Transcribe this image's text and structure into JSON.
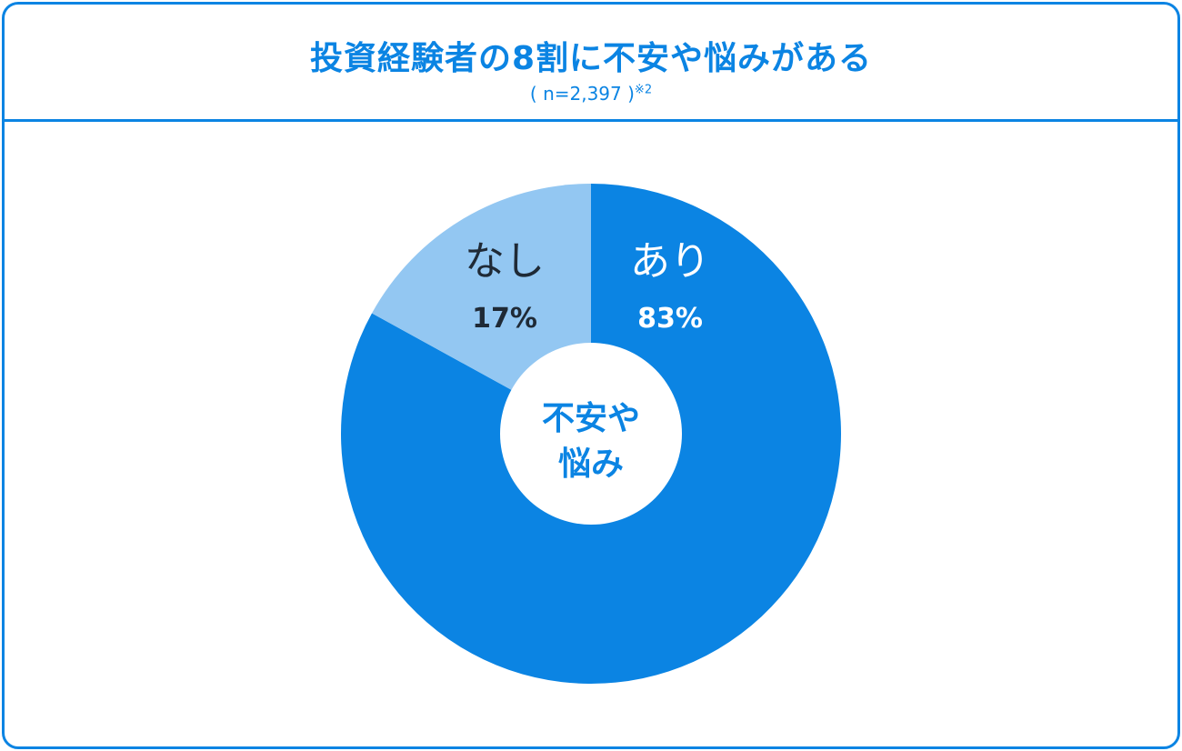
{
  "header": {
    "title": "投資経験者の8割に不安や悩みがある",
    "sample": "( n=2,397 )",
    "note": "※2"
  },
  "chart_data": {
    "type": "pie",
    "donut": true,
    "center_label_lines": [
      "不安や",
      "悩み"
    ],
    "slices": [
      {
        "label": "あり",
        "value": 83,
        "value_label": "83%",
        "color": "#0b84e3",
        "text_color": "#ffffff"
      },
      {
        "label": "なし",
        "value": 17,
        "value_label": "17%",
        "color": "#93c7f2",
        "text_color": "#1f2a36"
      }
    ],
    "start": "12 o'clock",
    "direction": "clockwise",
    "legend": "none"
  }
}
